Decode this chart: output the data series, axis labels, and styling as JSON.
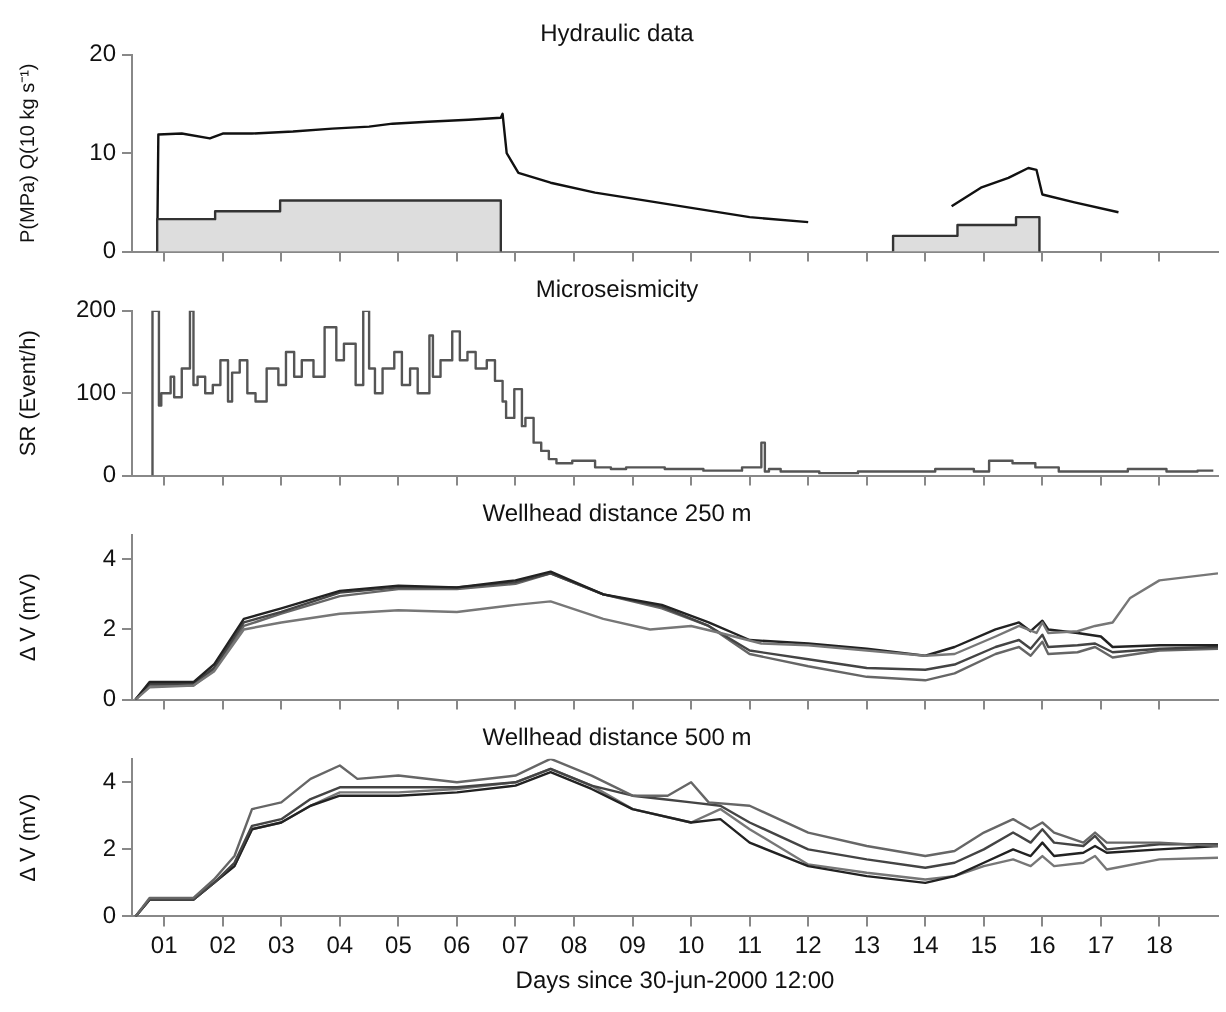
{
  "chart_data": [
    {
      "type": "line",
      "title": "Hydraulic data",
      "ylabel": "P(MPa) Q(10 kg s⁻¹)",
      "xlim": [
        0.45,
        19
      ],
      "xticks": [
        {
          "value": 1,
          "label": null
        },
        {
          "value": 2,
          "label": null
        },
        {
          "value": 3,
          "label": null
        },
        {
          "value": 4,
          "label": null
        },
        {
          "value": 5,
          "label": null
        },
        {
          "value": 6,
          "label": null
        },
        {
          "value": 7,
          "label": null
        },
        {
          "value": 8,
          "label": null
        },
        {
          "value": 9,
          "label": null
        },
        {
          "value": 10,
          "label": null
        },
        {
          "value": 11,
          "label": null
        },
        {
          "value": 12,
          "label": null
        },
        {
          "value": 13,
          "label": null
        },
        {
          "value": 14,
          "label": null
        },
        {
          "value": 15,
          "label": null
        },
        {
          "value": 16,
          "label": null
        },
        {
          "value": 17,
          "label": null
        },
        {
          "value": 18,
          "label": null
        }
      ],
      "ylim": [
        0,
        20
      ],
      "yticks": [
        0,
        10,
        20
      ],
      "tick_labels": "y",
      "series": [
        {
          "type": "area",
          "color": "#dddddd",
          "x": [
            0.88,
            0.88,
            1.87,
            1.87,
            2.98,
            2.98,
            6.75,
            6.75,
            10,
            13.45,
            13.45,
            14.55,
            14.55,
            15.55,
            15.55,
            15.95,
            15.95
          ],
          "values": [
            0,
            3.3,
            3.3,
            4.1,
            4.1,
            5.2,
            5.2,
            0,
            null,
            0,
            1.6,
            1.6,
            2.7,
            2.7,
            3.5,
            3.5,
            0
          ]
        },
        {
          "type": "line",
          "color": "#111111",
          "x": [
            0.88,
            0.9,
            1.3,
            1.78,
            2.0,
            2.5,
            3.2,
            3.87,
            4.5,
            4.9,
            5.5,
            6.2,
            6.75,
            6.78,
            6.85,
            7.05,
            7.6,
            8.36,
            9.2,
            9.95,
            11.0,
            12.0,
            13,
            14.45,
            14.95,
            15.42,
            15.76,
            15.9,
            16.0,
            16.55,
            17.3
          ],
          "values": [
            0,
            11.9,
            12,
            11.5,
            12,
            12,
            12.2,
            12.5,
            12.7,
            13,
            13.2,
            13.4,
            13.6,
            14,
            10,
            8,
            7,
            6,
            5.2,
            4.5,
            3.5,
            3.0,
            null,
            4.6,
            6.5,
            7.5,
            8.5,
            8.3,
            5.8,
            5,
            4
          ]
        }
      ]
    },
    {
      "type": "line",
      "title": "Microseismicity",
      "ylabel": "SR (Event/h)",
      "xlim": [
        0.45,
        19
      ],
      "xticks": [
        {
          "value": 1,
          "label": null
        },
        {
          "value": 2,
          "label": null
        },
        {
          "value": 3,
          "label": null
        },
        {
          "value": 4,
          "label": null
        },
        {
          "value": 5,
          "label": null
        },
        {
          "value": 6,
          "label": null
        },
        {
          "value": 7,
          "label": null
        },
        {
          "value": 8,
          "label": null
        },
        {
          "value": 9,
          "label": null
        },
        {
          "value": 10,
          "label": null
        },
        {
          "value": 11,
          "label": null
        },
        {
          "value": 12,
          "label": null
        },
        {
          "value": 13,
          "label": null
        },
        {
          "value": 14,
          "label": null
        },
        {
          "value": 15,
          "label": null
        },
        {
          "value": 16,
          "label": null
        },
        {
          "value": 17,
          "label": null
        },
        {
          "value": 18,
          "label": null
        }
      ],
      "ylim": [
        0,
        200
      ],
      "yticks": [
        0,
        100,
        200
      ],
      "tick_labels": "y",
      "series": [
        {
          "type": "step",
          "color": "#555555",
          "x": [
            0.8,
            0.82,
            0.91,
            0.95,
            1.11,
            1.17,
            1.3,
            1.44,
            1.5,
            1.57,
            1.7,
            1.83,
            1.96,
            2.09,
            2.16,
            2.29,
            2.42,
            2.56,
            2.75,
            2.95,
            3.08,
            3.22,
            3.35,
            3.55,
            3.74,
            3.94,
            4.07,
            4.27,
            4.4,
            4.5,
            4.6,
            4.73,
            4.93,
            5.06,
            5.2,
            5.33,
            5.53,
            5.59,
            5.72,
            5.92,
            6.05,
            6.18,
            6.32,
            6.51,
            6.65,
            6.78,
            6.84,
            6.98,
            7.11,
            7.17,
            7.31,
            7.44,
            7.57,
            7.7,
            7.97,
            8.36,
            8.63,
            8.89,
            9.55,
            10.21,
            10.87,
            11.2,
            11.26,
            11.33,
            11.53,
            12.19,
            12.85,
            13.51,
            14.17,
            14.83,
            15.09,
            15.49,
            15.88,
            16.28,
            16.8,
            17.46,
            18.12,
            18.65,
            18.92
          ],
          "values": [
            0,
            200,
            200,
            85,
            100,
            120,
            95,
            130,
            200,
            110,
            120,
            100,
            110,
            140,
            90,
            125,
            140,
            100,
            90,
            130,
            110,
            150,
            120,
            140,
            120,
            180,
            140,
            160,
            110,
            200,
            130,
            100,
            130,
            150,
            110,
            130,
            100,
            170,
            120,
            140,
            175,
            140,
            150,
            130,
            140,
            115,
            90,
            70,
            105,
            60,
            70,
            40,
            30,
            20,
            15,
            18,
            10,
            8,
            10,
            8,
            6,
            10,
            40,
            5,
            8,
            5,
            3,
            5,
            5,
            8,
            5,
            18,
            15,
            10,
            5,
            5,
            8,
            5,
            6
          ]
        }
      ]
    },
    {
      "type": "line",
      "title": "Wellhead distance 250 m",
      "ylabel": "Δ V (mV)",
      "xlim": [
        0.45,
        19
      ],
      "xticks": [
        {
          "value": 1,
          "label": null
        },
        {
          "value": 2,
          "label": null
        },
        {
          "value": 3,
          "label": null
        },
        {
          "value": 4,
          "label": null
        },
        {
          "value": 5,
          "label": null
        },
        {
          "value": 6,
          "label": null
        },
        {
          "value": 7,
          "label": null
        },
        {
          "value": 8,
          "label": null
        },
        {
          "value": 9,
          "label": null
        },
        {
          "value": 10,
          "label": null
        },
        {
          "value": 11,
          "label": null
        },
        {
          "value": 12,
          "label": null
        },
        {
          "value": 13,
          "label": null
        },
        {
          "value": 14,
          "label": null
        },
        {
          "value": 15,
          "label": null
        },
        {
          "value": 16,
          "label": null
        },
        {
          "value": 17,
          "label": null
        },
        {
          "value": 18,
          "label": null
        }
      ],
      "ylim": [
        0,
        4.7
      ],
      "yticks": [
        0,
        2,
        4
      ],
      "tick_labels": "y",
      "series": [
        {
          "color": "#777777",
          "x": [
            0.51,
            0.75,
            1.5,
            1.85,
            2.36,
            3,
            4,
            5,
            6,
            7,
            7.6,
            8.5,
            9.3,
            10,
            10.5,
            11.2,
            12,
            13,
            14,
            14.5,
            15.2,
            15.6,
            15.9,
            16,
            16.1,
            16.6,
            16.9,
            17.2,
            17.5,
            18,
            19
          ],
          "values": [
            0,
            0.35,
            0.4,
            0.8,
            2.0,
            2.2,
            2.45,
            2.55,
            2.5,
            2.7,
            2.8,
            2.3,
            2.0,
            2.1,
            1.9,
            1.6,
            1.55,
            1.4,
            1.25,
            1.3,
            1.8,
            2.1,
            1.9,
            2.2,
            1.9,
            1.95,
            2.1,
            2.2,
            2.9,
            3.4,
            3.6
          ]
        },
        {
          "color": "#222222",
          "x": [
            0.51,
            0.75,
            1.5,
            1.85,
            2.36,
            3,
            4,
            5,
            6,
            7,
            7.6,
            8.5,
            9.5,
            10.3,
            11,
            12,
            13,
            14,
            14.5,
            15.2,
            15.6,
            15.8,
            16,
            16.1,
            16.6,
            17,
            17.2,
            18,
            19
          ],
          "values": [
            0,
            0.5,
            0.5,
            1.0,
            2.3,
            2.6,
            3.1,
            3.25,
            3.2,
            3.4,
            3.65,
            3.0,
            2.7,
            2.2,
            1.7,
            1.6,
            1.45,
            1.25,
            1.5,
            2.0,
            2.2,
            1.95,
            2.25,
            2.0,
            1.9,
            1.8,
            1.5,
            1.55,
            1.55
          ]
        },
        {
          "color": "#444444",
          "x": [
            0.51,
            0.75,
            1.5,
            1.85,
            2.36,
            3,
            4,
            5,
            6,
            7,
            7.6,
            8.5,
            9.5,
            10.3,
            11,
            12,
            13,
            14,
            14.5,
            15.2,
            15.6,
            15.8,
            16,
            16.1,
            16.6,
            16.9,
            17.2,
            18,
            19
          ],
          "values": [
            0,
            0.45,
            0.45,
            0.9,
            2.2,
            2.5,
            3.05,
            3.2,
            3.2,
            3.35,
            3.6,
            3.0,
            2.65,
            2.1,
            1.4,
            1.15,
            0.9,
            0.85,
            1.0,
            1.5,
            1.7,
            1.45,
            1.85,
            1.5,
            1.55,
            1.6,
            1.35,
            1.45,
            1.5
          ]
        },
        {
          "color": "#666666",
          "x": [
            0.51,
            0.75,
            1.5,
            1.85,
            2.36,
            3,
            4,
            5,
            6,
            7,
            7.6,
            8.5,
            9.5,
            10.3,
            11,
            12,
            13,
            14,
            14.5,
            15.2,
            15.6,
            15.8,
            16,
            16.1,
            16.6,
            16.9,
            17.2,
            18,
            19
          ],
          "values": [
            0,
            0.4,
            0.4,
            0.85,
            2.1,
            2.45,
            2.95,
            3.15,
            3.15,
            3.3,
            3.6,
            3.0,
            2.6,
            2.1,
            1.3,
            0.95,
            0.65,
            0.55,
            0.75,
            1.3,
            1.5,
            1.25,
            1.65,
            1.3,
            1.35,
            1.5,
            1.2,
            1.4,
            1.45
          ]
        }
      ]
    },
    {
      "type": "line",
      "title": "Wellhead distance 500 m",
      "ylabel": "Δ V (mV)",
      "xlabel": "Days since 30-jun-2000 12:00",
      "xlim": [
        0.45,
        19
      ],
      "xticks": [
        {
          "value": 1,
          "label": "01"
        },
        {
          "value": 2,
          "label": "02"
        },
        {
          "value": 3,
          "label": "03"
        },
        {
          "value": 4,
          "label": "04"
        },
        {
          "value": 5,
          "label": "05"
        },
        {
          "value": 6,
          "label": "06"
        },
        {
          "value": 7,
          "label": "07"
        },
        {
          "value": 8,
          "label": "08"
        },
        {
          "value": 9,
          "label": "09"
        },
        {
          "value": 10,
          "label": "10"
        },
        {
          "value": 11,
          "label": "11"
        },
        {
          "value": 12,
          "label": "12"
        },
        {
          "value": 13,
          "label": "13"
        },
        {
          "value": 14,
          "label": "14"
        },
        {
          "value": 15,
          "label": "15"
        },
        {
          "value": 16,
          "label": "16"
        },
        {
          "value": 17,
          "label": "17"
        },
        {
          "value": 18,
          "label": "18"
        }
      ],
      "ylim": [
        0,
        4.7
      ],
      "yticks": [
        0,
        2,
        4
      ],
      "series": [
        {
          "color": "#666666",
          "x": [
            0.51,
            0.75,
            1.5,
            1.85,
            2.2,
            2.5,
            3,
            3.5,
            4,
            4.3,
            5,
            6,
            7,
            7.6,
            8.3,
            9,
            9.6,
            10,
            10.3,
            11,
            12,
            13,
            14,
            14.5,
            15,
            15.5,
            15.8,
            16,
            16.2,
            16.7,
            16.9,
            17.1,
            18,
            19
          ],
          "values": [
            0,
            0.55,
            0.55,
            1.1,
            1.8,
            3.2,
            3.4,
            4.1,
            4.5,
            4.1,
            4.2,
            4.0,
            4.2,
            4.7,
            4.2,
            3.6,
            3.6,
            4.0,
            3.4,
            3.3,
            2.5,
            2.1,
            1.8,
            1.95,
            2.5,
            2.9,
            2.6,
            2.8,
            2.5,
            2.2,
            2.5,
            2.2,
            2.2,
            2.1
          ]
        },
        {
          "color": "#444444",
          "x": [
            0.51,
            0.75,
            1.5,
            1.85,
            2.2,
            2.5,
            3,
            3.5,
            4,
            5,
            6,
            7,
            7.6,
            8.3,
            9,
            9.5,
            10,
            10.5,
            11,
            12,
            13,
            14,
            14.5,
            15,
            15.5,
            15.8,
            16,
            16.2,
            16.7,
            16.9,
            17.1,
            18,
            19
          ],
          "values": [
            0,
            0.5,
            0.5,
            1.0,
            1.6,
            2.7,
            2.9,
            3.5,
            3.85,
            3.85,
            3.85,
            4.0,
            4.4,
            3.9,
            3.6,
            3.5,
            3.4,
            3.3,
            2.8,
            2.0,
            1.7,
            1.45,
            1.6,
            2.0,
            2.5,
            2.2,
            2.6,
            2.2,
            2.1,
            2.4,
            2.0,
            2.15,
            2.15
          ]
        },
        {
          "color": "#222222",
          "x": [
            0.51,
            0.75,
            1.5,
            1.85,
            2.2,
            2.5,
            3,
            3.5,
            4,
            5,
            6,
            7,
            7.6,
            8.3,
            9,
            10,
            10.5,
            11,
            12,
            13,
            14,
            14.5,
            15,
            15.5,
            15.8,
            16,
            16.2,
            16.7,
            16.9,
            17.1,
            18,
            19
          ],
          "values": [
            0,
            0.5,
            0.5,
            1.0,
            1.5,
            2.6,
            2.8,
            3.3,
            3.6,
            3.6,
            3.7,
            3.9,
            4.3,
            3.8,
            3.2,
            2.8,
            2.9,
            2.2,
            1.5,
            1.2,
            1.0,
            1.2,
            1.6,
            2.0,
            1.8,
            2.2,
            1.8,
            1.9,
            2.1,
            1.9,
            2.0,
            2.1
          ]
        },
        {
          "color": "#777777",
          "x": [
            0.51,
            0.75,
            1.5,
            1.85,
            2.2,
            2.5,
            3,
            3.5,
            4,
            5,
            6,
            7,
            7.6,
            8.3,
            9,
            10,
            10.5,
            11,
            12,
            13,
            14,
            14.5,
            15,
            15.5,
            15.8,
            16,
            16.2,
            16.7,
            16.9,
            17.1,
            18,
            19
          ],
          "values": [
            0,
            0.5,
            0.5,
            1.0,
            1.5,
            2.6,
            2.8,
            3.3,
            3.7,
            3.7,
            3.8,
            4.0,
            4.4,
            3.9,
            3.2,
            2.8,
            3.2,
            2.6,
            1.55,
            1.3,
            1.1,
            1.2,
            1.5,
            1.7,
            1.5,
            1.8,
            1.5,
            1.6,
            1.8,
            1.4,
            1.7,
            1.75
          ]
        }
      ]
    }
  ]
}
